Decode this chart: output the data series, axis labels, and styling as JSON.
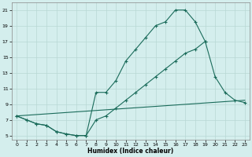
{
  "xlabel": "Humidex (Indice chaleur)",
  "bg_color": "#d4eeed",
  "line_color": "#1a6b5a",
  "grid_color": "#b8d8d4",
  "xlim": [
    -0.5,
    23.5
  ],
  "ylim": [
    4.5,
    22
  ],
  "xticks": [
    0,
    1,
    2,
    3,
    4,
    5,
    6,
    7,
    8,
    9,
    10,
    11,
    12,
    13,
    14,
    15,
    16,
    17,
    18,
    19,
    20,
    21,
    22,
    23
  ],
  "yticks": [
    5,
    7,
    9,
    11,
    13,
    15,
    17,
    19,
    21
  ],
  "line1_x": [
    0,
    1,
    2,
    3,
    4,
    5,
    6,
    7,
    8,
    9,
    10,
    11,
    12,
    13,
    14,
    15,
    16,
    17,
    18,
    19
  ],
  "line1_y": [
    7.5,
    7.0,
    6.5,
    6.3,
    5.5,
    5.2,
    5.0,
    5.0,
    10.5,
    10.5,
    12.0,
    14.5,
    16.0,
    17.5,
    19.0,
    19.5,
    21.0,
    21.0,
    19.5,
    17.0
  ],
  "line2_x": [
    0,
    1,
    2,
    3,
    4,
    5,
    6,
    7,
    8,
    9,
    10,
    11,
    12,
    13,
    14,
    15,
    16,
    17,
    18,
    19,
    20,
    21,
    22,
    23
  ],
  "line2_y": [
    7.5,
    7.0,
    6.5,
    6.3,
    5.5,
    5.2,
    5.0,
    5.0,
    7.0,
    7.5,
    8.5,
    9.5,
    10.5,
    11.5,
    12.5,
    13.5,
    14.5,
    15.5,
    16.0,
    17.0,
    12.5,
    10.5,
    9.5,
    9.2
  ],
  "line3_x": [
    0,
    23
  ],
  "line3_y": [
    7.5,
    9.5
  ]
}
